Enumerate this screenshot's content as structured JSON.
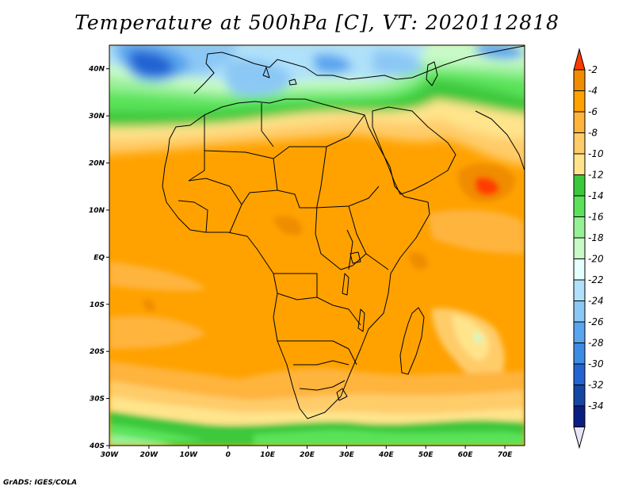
{
  "title": "Temperature at 500hPa [C], VT: 2020112818",
  "credit": "GrADS: IGES/COLA",
  "map": {
    "lon_range": [
      -30,
      75
    ],
    "lat_range": [
      -40,
      45
    ],
    "lon_ticks": [
      {
        "value": -30,
        "label": "30W"
      },
      {
        "value": -20,
        "label": "20W"
      },
      {
        "value": -10,
        "label": "10W"
      },
      {
        "value": 0,
        "label": "0"
      },
      {
        "value": 10,
        "label": "10E"
      },
      {
        "value": 20,
        "label": "20E"
      },
      {
        "value": 30,
        "label": "30E"
      },
      {
        "value": 40,
        "label": "40E"
      },
      {
        "value": 50,
        "label": "50E"
      },
      {
        "value": 60,
        "label": "60E"
      },
      {
        "value": 70,
        "label": "70E"
      }
    ],
    "lat_ticks": [
      {
        "value": 40,
        "label": "40N"
      },
      {
        "value": 30,
        "label": "30N"
      },
      {
        "value": 20,
        "label": "20N"
      },
      {
        "value": 10,
        "label": "10N"
      },
      {
        "value": 0,
        "label": "EQ"
      },
      {
        "value": -10,
        "label": "10S"
      },
      {
        "value": -20,
        "label": "20S"
      },
      {
        "value": -30,
        "label": "30S"
      },
      {
        "value": -40,
        "label": "40S"
      }
    ]
  },
  "colorbar": {
    "levels": [
      {
        "label": "-2",
        "color": "#f08c00"
      },
      {
        "label": "-4",
        "color": "#ffa200"
      },
      {
        "label": "-6",
        "color": "#ffb43c"
      },
      {
        "label": "-8",
        "color": "#ffcc6a"
      },
      {
        "label": "-10",
        "color": "#ffe48c"
      },
      {
        "label": "-12",
        "color": "#3cc83c"
      },
      {
        "label": "-14",
        "color": "#5ae35a"
      },
      {
        "label": "-16",
        "color": "#96f096"
      },
      {
        "label": "-18",
        "color": "#c8fac8"
      },
      {
        "label": "-20",
        "color": "#e6ffff"
      },
      {
        "label": "-22",
        "color": "#afe1fa"
      },
      {
        "label": "-24",
        "color": "#8cc8f5"
      },
      {
        "label": "-26",
        "color": "#5aa5ef"
      },
      {
        "label": "-28",
        "color": "#3c8ce6"
      },
      {
        "label": "-30",
        "color": "#2364d2"
      },
      {
        "label": "-32",
        "color": "#1446a5"
      },
      {
        "label": "-34",
        "color": "#0a1e82"
      }
    ],
    "top_color": "#ff3c00",
    "bottom_color": "#e6e6fa"
  }
}
